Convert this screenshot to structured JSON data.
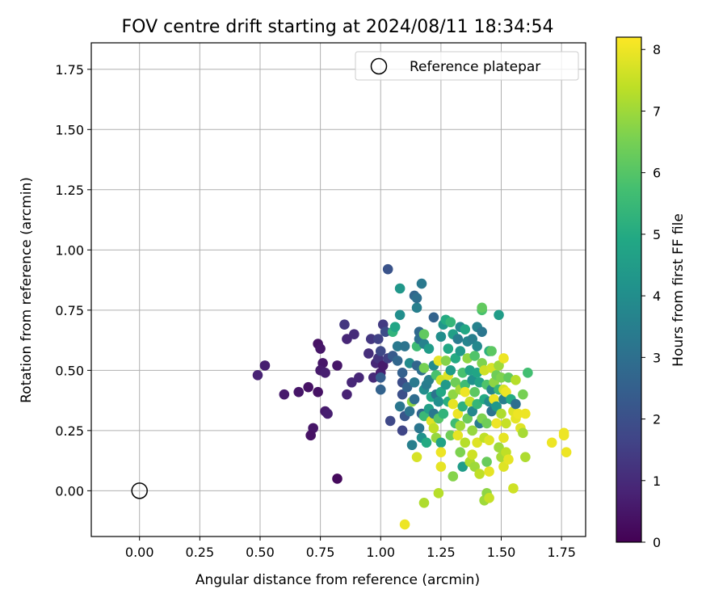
{
  "chart_data": {
    "type": "scatter",
    "title": "FOV centre drift starting at 2024/08/11 18:34:54",
    "xlabel": "Angular distance from reference (arcmin)",
    "ylabel": "Rotation from reference (arcmin)",
    "xlim": [
      -0.2,
      1.85
    ],
    "ylim": [
      -0.19,
      1.86
    ],
    "xticks": [
      "0.00",
      "0.25",
      "0.50",
      "0.75",
      "1.00",
      "1.25",
      "1.50",
      "1.75"
    ],
    "yticks": [
      "0.00",
      "0.25",
      "0.50",
      "0.75",
      "1.00",
      "1.25",
      "1.50",
      "1.75"
    ],
    "grid": true,
    "legend": {
      "position": "top-right",
      "entries": [
        {
          "label": "Reference platepar",
          "marker": "open-circle",
          "x": 0.0,
          "y": 0.0
        }
      ]
    },
    "colorbar": {
      "label": "Hours from first FF file",
      "min": 0,
      "max": 8.2,
      "ticks": [
        "0",
        "1",
        "2",
        "3",
        "4",
        "5",
        "6",
        "7",
        "8"
      ],
      "colormap": "viridis"
    },
    "points": [
      {
        "x": 0.49,
        "y": 0.48,
        "t": 0.8
      },
      {
        "x": 0.52,
        "y": 0.52,
        "t": 0.7
      },
      {
        "x": 0.6,
        "y": 0.4,
        "t": 0.6
      },
      {
        "x": 0.66,
        "y": 0.41,
        "t": 0.5
      },
      {
        "x": 0.7,
        "y": 0.43,
        "t": 0.4
      },
      {
        "x": 0.72,
        "y": 0.26,
        "t": 0.5
      },
      {
        "x": 0.71,
        "y": 0.23,
        "t": 0.4
      },
      {
        "x": 0.74,
        "y": 0.61,
        "t": 0.4
      },
      {
        "x": 0.75,
        "y": 0.59,
        "t": 0.5
      },
      {
        "x": 0.74,
        "y": 0.41,
        "t": 0.4
      },
      {
        "x": 0.76,
        "y": 0.53,
        "t": 0.5
      },
      {
        "x": 0.75,
        "y": 0.5,
        "t": 0.6
      },
      {
        "x": 0.77,
        "y": 0.49,
        "t": 0.7
      },
      {
        "x": 0.77,
        "y": 0.33,
        "t": 0.6
      },
      {
        "x": 0.78,
        "y": 0.32,
        "t": 0.7
      },
      {
        "x": 0.82,
        "y": 0.52,
        "t": 0.5
      },
      {
        "x": 0.82,
        "y": 0.05,
        "t": 0.2
      },
      {
        "x": 0.85,
        "y": 0.69,
        "t": 1.3
      },
      {
        "x": 0.86,
        "y": 0.63,
        "t": 0.9
      },
      {
        "x": 0.86,
        "y": 0.4,
        "t": 0.8
      },
      {
        "x": 0.88,
        "y": 0.45,
        "t": 0.9
      },
      {
        "x": 0.89,
        "y": 0.65,
        "t": 1.0
      },
      {
        "x": 0.91,
        "y": 0.47,
        "t": 0.9
      },
      {
        "x": 0.95,
        "y": 0.57,
        "t": 1.1
      },
      {
        "x": 0.96,
        "y": 0.63,
        "t": 1.3
      },
      {
        "x": 0.97,
        "y": 0.47,
        "t": 1.0
      },
      {
        "x": 0.98,
        "y": 0.53,
        "t": 0.9
      },
      {
        "x": 0.99,
        "y": 0.55,
        "t": 1.2
      },
      {
        "x": 0.99,
        "y": 0.63,
        "t": 1.6
      },
      {
        "x": 1.0,
        "y": 0.49,
        "t": 0.7
      },
      {
        "x": 1.01,
        "y": 0.69,
        "t": 1.4
      },
      {
        "x": 1.01,
        "y": 0.52,
        "t": 0.6
      },
      {
        "x": 1.0,
        "y": 0.58,
        "t": 1.8
      },
      {
        "x": 1.0,
        "y": 0.47,
        "t": 2.4
      },
      {
        "x": 1.0,
        "y": 0.42,
        "t": 2.6
      },
      {
        "x": 1.02,
        "y": 0.66,
        "t": 1.9
      },
      {
        "x": 1.03,
        "y": 0.92,
        "t": 2.1
      },
      {
        "x": 1.03,
        "y": 0.55,
        "t": 1.5
      },
      {
        "x": 1.04,
        "y": 0.29,
        "t": 1.8
      },
      {
        "x": 1.05,
        "y": 0.56,
        "t": 2.3
      },
      {
        "x": 1.05,
        "y": 0.66,
        "t": 5.3
      },
      {
        "x": 1.06,
        "y": 0.68,
        "t": 4.8
      },
      {
        "x": 1.07,
        "y": 0.54,
        "t": 2.7
      },
      {
        "x": 1.07,
        "y": 0.6,
        "t": 3.3
      },
      {
        "x": 1.08,
        "y": 0.84,
        "t": 4.3
      },
      {
        "x": 1.08,
        "y": 0.73,
        "t": 4.0
      },
      {
        "x": 1.08,
        "y": 0.35,
        "t": 3.2
      },
      {
        "x": 1.09,
        "y": 0.45,
        "t": 1.9
      },
      {
        "x": 1.09,
        "y": 0.49,
        "t": 2.5
      },
      {
        "x": 1.09,
        "y": 0.25,
        "t": 1.7
      },
      {
        "x": 1.09,
        "y": 0.4,
        "t": 2.0
      },
      {
        "x": 1.1,
        "y": 0.6,
        "t": 3.1
      },
      {
        "x": 1.1,
        "y": 0.31,
        "t": 2.2
      },
      {
        "x": 1.1,
        "y": -0.14,
        "t": 8.0
      },
      {
        "x": 1.11,
        "y": 0.43,
        "t": 2.6
      },
      {
        "x": 1.12,
        "y": 0.33,
        "t": 3.1
      },
      {
        "x": 1.12,
        "y": 0.53,
        "t": 3.9
      },
      {
        "x": 1.13,
        "y": 0.37,
        "t": 6.8
      },
      {
        "x": 1.13,
        "y": 0.19,
        "t": 3.5
      },
      {
        "x": 1.14,
        "y": 0.81,
        "t": 2.7
      },
      {
        "x": 1.14,
        "y": 0.38,
        "t": 2.9
      },
      {
        "x": 1.14,
        "y": 0.45,
        "t": 3.3
      },
      {
        "x": 1.15,
        "y": 0.76,
        "t": 3.5
      },
      {
        "x": 1.15,
        "y": 0.8,
        "t": 3.0
      },
      {
        "x": 1.15,
        "y": 0.6,
        "t": 5.6
      },
      {
        "x": 1.15,
        "y": 0.52,
        "t": 2.7
      },
      {
        "x": 1.15,
        "y": 0.14,
        "t": 7.7
      },
      {
        "x": 1.16,
        "y": 0.63,
        "t": 3.0
      },
      {
        "x": 1.16,
        "y": 0.66,
        "t": 2.8
      },
      {
        "x": 1.16,
        "y": 0.26,
        "t": 3.2
      },
      {
        "x": 1.17,
        "y": 0.86,
        "t": 3.3
      },
      {
        "x": 1.17,
        "y": 0.5,
        "t": 3.0
      },
      {
        "x": 1.17,
        "y": 0.32,
        "t": 2.7
      },
      {
        "x": 1.17,
        "y": 0.22,
        "t": 4.1
      },
      {
        "x": 1.18,
        "y": 0.51,
        "t": 6.5
      },
      {
        "x": 1.18,
        "y": 0.42,
        "t": 4.0
      },
      {
        "x": 1.18,
        "y": 0.61,
        "t": 3.6
      },
      {
        "x": 1.18,
        "y": 0.65,
        "t": 6.2
      },
      {
        "x": 1.18,
        "y": 0.31,
        "t": 5.5
      },
      {
        "x": 1.18,
        "y": -0.05,
        "t": 7.2
      },
      {
        "x": 1.19,
        "y": 0.2,
        "t": 5.0
      },
      {
        "x": 1.19,
        "y": 0.44,
        "t": 3.4
      },
      {
        "x": 1.2,
        "y": 0.59,
        "t": 4.5
      },
      {
        "x": 1.2,
        "y": 0.46,
        "t": 3.5
      },
      {
        "x": 1.2,
        "y": 0.34,
        "t": 4.6
      },
      {
        "x": 1.21,
        "y": 0.29,
        "t": 7.8
      },
      {
        "x": 1.21,
        "y": 0.39,
        "t": 4.9
      },
      {
        "x": 1.22,
        "y": 0.72,
        "t": 2.6
      },
      {
        "x": 1.22,
        "y": 0.52,
        "t": 3.9
      },
      {
        "x": 1.22,
        "y": 0.32,
        "t": 3.3
      },
      {
        "x": 1.22,
        "y": 0.26,
        "t": 7.4
      },
      {
        "x": 1.23,
        "y": 0.4,
        "t": 3.1
      },
      {
        "x": 1.23,
        "y": 0.22,
        "t": 6.9
      },
      {
        "x": 1.23,
        "y": 0.48,
        "t": 5.8
      },
      {
        "x": 1.24,
        "y": 0.3,
        "t": 6.0
      },
      {
        "x": 1.24,
        "y": 0.37,
        "t": 4.0
      },
      {
        "x": 1.24,
        "y": 0.54,
        "t": 7.9
      },
      {
        "x": 1.24,
        "y": -0.01,
        "t": 7.3
      },
      {
        "x": 1.25,
        "y": 0.64,
        "t": 4.0
      },
      {
        "x": 1.25,
        "y": 0.46,
        "t": 7.6
      },
      {
        "x": 1.25,
        "y": 0.41,
        "t": 4.9
      },
      {
        "x": 1.25,
        "y": 0.2,
        "t": 4.7
      },
      {
        "x": 1.25,
        "y": 0.16,
        "t": 8.0
      },
      {
        "x": 1.25,
        "y": 0.1,
        "t": 7.9
      },
      {
        "x": 1.26,
        "y": 0.69,
        "t": 4.3
      },
      {
        "x": 1.26,
        "y": 0.32,
        "t": 5.3
      },
      {
        "x": 1.27,
        "y": 0.71,
        "t": 5.0
      },
      {
        "x": 1.27,
        "y": 0.44,
        "t": 4.4
      },
      {
        "x": 1.27,
        "y": 0.54,
        "t": 6.7
      },
      {
        "x": 1.28,
        "y": 0.59,
        "t": 4.9
      },
      {
        "x": 1.28,
        "y": 0.37,
        "t": 5.1
      },
      {
        "x": 1.28,
        "y": 0.48,
        "t": 7.8
      },
      {
        "x": 1.29,
        "y": 0.5,
        "t": 4.5
      },
      {
        "x": 1.29,
        "y": 0.23,
        "t": 6.4
      },
      {
        "x": 1.29,
        "y": 0.7,
        "t": 5.4
      },
      {
        "x": 1.3,
        "y": 0.65,
        "t": 4.6
      },
      {
        "x": 1.3,
        "y": 0.4,
        "t": 6.8
      },
      {
        "x": 1.3,
        "y": 0.36,
        "t": 7.9
      },
      {
        "x": 1.3,
        "y": 0.06,
        "t": 6.7
      },
      {
        "x": 1.31,
        "y": 0.28,
        "t": 5.6
      },
      {
        "x": 1.31,
        "y": 0.55,
        "t": 5.0
      },
      {
        "x": 1.31,
        "y": 0.45,
        "t": 6.4
      },
      {
        "x": 1.32,
        "y": 0.32,
        "t": 8.0
      },
      {
        "x": 1.32,
        "y": 0.63,
        "t": 3.4
      },
      {
        "x": 1.32,
        "y": 0.23,
        "t": 7.9
      },
      {
        "x": 1.33,
        "y": 0.68,
        "t": 3.8
      },
      {
        "x": 1.33,
        "y": 0.58,
        "t": 4.4
      },
      {
        "x": 1.33,
        "y": 0.42,
        "t": 7.1
      },
      {
        "x": 1.33,
        "y": 0.27,
        "t": 7.0
      },
      {
        "x": 1.33,
        "y": 0.16,
        "t": 6.6
      },
      {
        "x": 1.34,
        "y": 0.49,
        "t": 5.8
      },
      {
        "x": 1.34,
        "y": 0.35,
        "t": 5.2
      },
      {
        "x": 1.34,
        "y": 0.1,
        "t": 4.5
      },
      {
        "x": 1.35,
        "y": 0.44,
        "t": 5.6
      },
      {
        "x": 1.35,
        "y": 0.67,
        "t": 4.9
      },
      {
        "x": 1.35,
        "y": 0.41,
        "t": 8.0
      },
      {
        "x": 1.35,
        "y": 0.2,
        "t": 7.3
      },
      {
        "x": 1.36,
        "y": 0.62,
        "t": 3.7
      },
      {
        "x": 1.36,
        "y": 0.55,
        "t": 6.8
      },
      {
        "x": 1.36,
        "y": 0.3,
        "t": 6.3
      },
      {
        "x": 1.37,
        "y": 0.5,
        "t": 4.7
      },
      {
        "x": 1.37,
        "y": 0.37,
        "t": 7.5
      },
      {
        "x": 1.37,
        "y": 0.12,
        "t": 7.2
      },
      {
        "x": 1.38,
        "y": 0.46,
        "t": 4.1
      },
      {
        "x": 1.38,
        "y": 0.33,
        "t": 3.8
      },
      {
        "x": 1.38,
        "y": 0.63,
        "t": 3.5
      },
      {
        "x": 1.38,
        "y": 0.25,
        "t": 6.9
      },
      {
        "x": 1.38,
        "y": 0.15,
        "t": 7.6
      },
      {
        "x": 1.39,
        "y": 0.56,
        "t": 5.9
      },
      {
        "x": 1.39,
        "y": 0.41,
        "t": 6.1
      },
      {
        "x": 1.39,
        "y": 0.1,
        "t": 7.0
      },
      {
        "x": 1.4,
        "y": 0.68,
        "t": 3.6
      },
      {
        "x": 1.4,
        "y": 0.6,
        "t": 3.8
      },
      {
        "x": 1.4,
        "y": 0.49,
        "t": 4.8
      },
      {
        "x": 1.4,
        "y": 0.36,
        "t": 5.4
      },
      {
        "x": 1.4,
        "y": 0.2,
        "t": 7.8
      },
      {
        "x": 1.41,
        "y": 0.07,
        "t": 7.4
      },
      {
        "x": 1.41,
        "y": 0.28,
        "t": 3.4
      },
      {
        "x": 1.41,
        "y": 0.45,
        "t": 4.7
      },
      {
        "x": 1.42,
        "y": 0.75,
        "t": 5.8
      },
      {
        "x": 1.42,
        "y": 0.76,
        "t": 6.2
      },
      {
        "x": 1.42,
        "y": 0.66,
        "t": 3.2
      },
      {
        "x": 1.42,
        "y": 0.53,
        "t": 6.6
      },
      {
        "x": 1.42,
        "y": 0.3,
        "t": 6.6
      },
      {
        "x": 1.43,
        "y": 0.5,
        "t": 7.6
      },
      {
        "x": 1.43,
        "y": 0.38,
        "t": 5.0
      },
      {
        "x": 1.43,
        "y": 0.22,
        "t": 7.4
      },
      {
        "x": 1.43,
        "y": -0.04,
        "t": 7.0
      },
      {
        "x": 1.44,
        "y": 0.44,
        "t": 5.9
      },
      {
        "x": 1.44,
        "y": 0.28,
        "t": 6.4
      },
      {
        "x": 1.44,
        "y": 0.12,
        "t": 6.3
      },
      {
        "x": 1.44,
        "y": -0.01,
        "t": 6.8
      },
      {
        "x": 1.45,
        "y": 0.58,
        "t": 5.2
      },
      {
        "x": 1.45,
        "y": 0.37,
        "t": 3.9
      },
      {
        "x": 1.45,
        "y": 0.21,
        "t": 7.8
      },
      {
        "x": 1.45,
        "y": 0.08,
        "t": 7.9
      },
      {
        "x": 1.45,
        "y": -0.03,
        "t": 7.5
      },
      {
        "x": 1.46,
        "y": 0.51,
        "t": 7.7
      },
      {
        "x": 1.46,
        "y": 0.42,
        "t": 3.7
      },
      {
        "x": 1.46,
        "y": 0.33,
        "t": 3.1
      },
      {
        "x": 1.46,
        "y": 0.58,
        "t": 6.1
      },
      {
        "x": 1.47,
        "y": 0.45,
        "t": 6.8
      },
      {
        "x": 1.47,
        "y": 0.38,
        "t": 8.0
      },
      {
        "x": 1.48,
        "y": 0.48,
        "t": 6.4
      },
      {
        "x": 1.48,
        "y": 0.35,
        "t": 4.3
      },
      {
        "x": 1.48,
        "y": 0.28,
        "t": 8.0
      },
      {
        "x": 1.49,
        "y": 0.73,
        "t": 4.5
      },
      {
        "x": 1.49,
        "y": 0.52,
        "t": 7.0
      },
      {
        "x": 1.49,
        "y": 0.42,
        "t": 5.5
      },
      {
        "x": 1.49,
        "y": 0.18,
        "t": 7.0
      },
      {
        "x": 1.5,
        "y": 0.47,
        "t": 6.6
      },
      {
        "x": 1.5,
        "y": 0.32,
        "t": 7.2
      },
      {
        "x": 1.5,
        "y": 0.14,
        "t": 7.1
      },
      {
        "x": 1.51,
        "y": 0.55,
        "t": 8.0
      },
      {
        "x": 1.51,
        "y": 0.42,
        "t": 7.7
      },
      {
        "x": 1.51,
        "y": 0.38,
        "t": 3.5
      },
      {
        "x": 1.51,
        "y": 0.22,
        "t": 7.9
      },
      {
        "x": 1.51,
        "y": 0.1,
        "t": 7.8
      },
      {
        "x": 1.52,
        "y": 0.41,
        "t": 8.0
      },
      {
        "x": 1.52,
        "y": 0.28,
        "t": 7.5
      },
      {
        "x": 1.52,
        "y": 0.16,
        "t": 7.4
      },
      {
        "x": 1.53,
        "y": 0.13,
        "t": 7.9
      },
      {
        "x": 1.53,
        "y": 0.47,
        "t": 6.2
      },
      {
        "x": 1.54,
        "y": 0.38,
        "t": 5.0
      },
      {
        "x": 1.55,
        "y": 0.33,
        "t": 7.8
      },
      {
        "x": 1.55,
        "y": 0.01,
        "t": 7.6
      },
      {
        "x": 1.56,
        "y": 0.46,
        "t": 7.3
      },
      {
        "x": 1.56,
        "y": 0.3,
        "t": 7.9
      },
      {
        "x": 1.56,
        "y": 0.36,
        "t": 3.0
      },
      {
        "x": 1.57,
        "y": 0.32,
        "t": 8.0
      },
      {
        "x": 1.58,
        "y": 0.26,
        "t": 7.8
      },
      {
        "x": 1.59,
        "y": 0.24,
        "t": 7.1
      },
      {
        "x": 1.59,
        "y": 0.4,
        "t": 6.5
      },
      {
        "x": 1.6,
        "y": 0.14,
        "t": 7.2
      },
      {
        "x": 1.6,
        "y": 0.32,
        "t": 8.0
      },
      {
        "x": 1.61,
        "y": 0.49,
        "t": 5.7
      },
      {
        "x": 1.71,
        "y": 0.2,
        "t": 8.0
      },
      {
        "x": 1.76,
        "y": 0.24,
        "t": 8.0
      },
      {
        "x": 1.76,
        "y": 0.23,
        "t": 8.0
      },
      {
        "x": 1.77,
        "y": 0.16,
        "t": 8.0
      }
    ]
  }
}
